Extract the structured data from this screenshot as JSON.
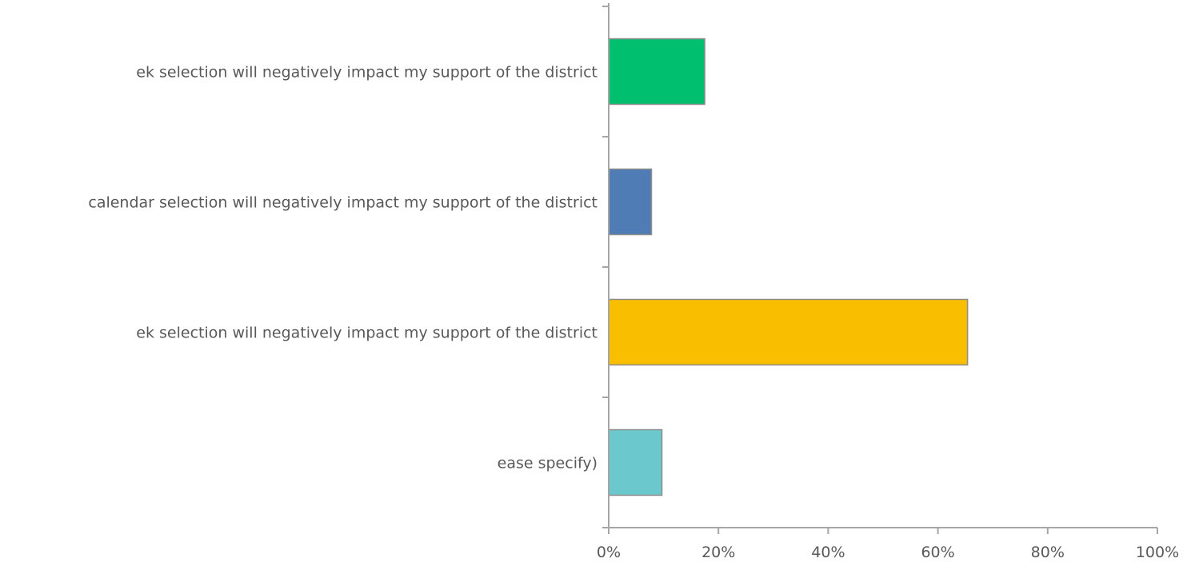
{
  "chart_data": {
    "type": "bar",
    "orientation": "horizontal",
    "title": "",
    "xlabel": "",
    "ylabel": "",
    "categories": [
      "ek selection will negatively impact my support of the district",
      " calendar selection will negatively impact my support of the district",
      "ek selection will negatively impact my support of the district",
      "ease specify)"
    ],
    "values": [
      17.5,
      7.8,
      65.4,
      9.7
    ],
    "colors": [
      "#00bf6f",
      "#507cb6",
      "#f9be00",
      "#6bc8cd"
    ],
    "bar_border": "#8c8c8c",
    "xlim": [
      0,
      100
    ],
    "x_ticks": [
      0,
      20,
      40,
      60,
      80,
      100
    ],
    "x_tick_labels": [
      "0%",
      "20%",
      "40%",
      "60%",
      "80%",
      "100%"
    ],
    "grid": false,
    "legend": "none"
  }
}
